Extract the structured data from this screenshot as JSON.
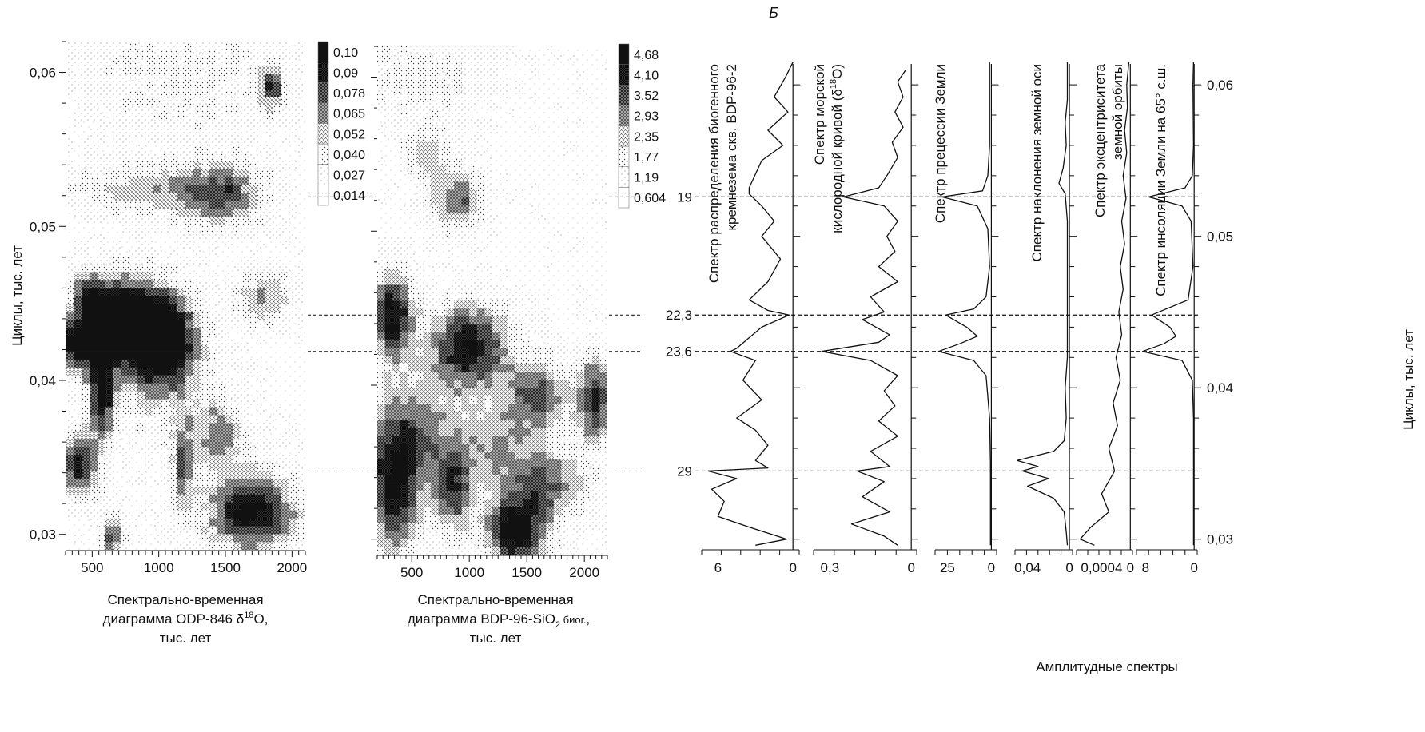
{
  "panel_letter": "Б",
  "left_axis_label": "Циклы, тыс. лет",
  "right_axis_label": "Циклы, тыс. лет",
  "bottom_label": "Амплитудные спектры",
  "colors": {
    "ink": "#111111",
    "dark": "#1a1a1a",
    "paper": "#ffffff"
  },
  "chart_data": [
    {
      "type": "heatmap",
      "id": "odp846",
      "title_lines": [
        "Спектрально-временная",
        "диаграмма ODP-846 δ18O,",
        "тыс. лет"
      ],
      "xlim": [
        300,
        2100
      ],
      "ylim": [
        0.029,
        0.062
      ],
      "x_ticks": [
        "500",
        "1000",
        "1500",
        "2000"
      ],
      "x_tick_values": [
        500,
        1000,
        1500,
        2000
      ],
      "y_ticks": [
        "0,06",
        "0,05",
        "0,04",
        "0,03"
      ],
      "y_tick_values": [
        0.06,
        0.05,
        0.04,
        0.03
      ],
      "colorbar": [
        "0,10",
        "0,09",
        "0,078",
        "0,065",
        "0,052",
        "0,040",
        "0,027",
        "0,014"
      ],
      "hotspots": [
        {
          "x": 760,
          "y": 0.044,
          "sx": 180,
          "sy": 0.002,
          "v": 0.95
        },
        {
          "x": 400,
          "y": 0.0424,
          "sx": 120,
          "sy": 0.0012,
          "v": 0.9
        },
        {
          "x": 1050,
          "y": 0.043,
          "sx": 170,
          "sy": 0.002,
          "v": 0.8
        },
        {
          "x": 570,
          "y": 0.039,
          "sx": 70,
          "sy": 0.002,
          "v": 0.75
        },
        {
          "x": 470,
          "y": 0.0455,
          "sx": 100,
          "sy": 0.0012,
          "v": 0.6
        },
        {
          "x": 400,
          "y": 0.0345,
          "sx": 110,
          "sy": 0.0015,
          "v": 0.7
        },
        {
          "x": 1480,
          "y": 0.052,
          "sx": 220,
          "sy": 0.0015,
          "v": 0.55
        },
        {
          "x": 1700,
          "y": 0.0315,
          "sx": 250,
          "sy": 0.0018,
          "v": 0.85
        },
        {
          "x": 1180,
          "y": 0.0345,
          "sx": 60,
          "sy": 0.002,
          "v": 0.55
        },
        {
          "x": 1450,
          "y": 0.0365,
          "sx": 140,
          "sy": 0.0015,
          "v": 0.5
        },
        {
          "x": 1850,
          "y": 0.059,
          "sx": 60,
          "sy": 0.001,
          "v": 0.55
        },
        {
          "x": 900,
          "y": 0.0525,
          "sx": 400,
          "sy": 0.0012,
          "v": 0.35
        },
        {
          "x": 1800,
          "y": 0.0455,
          "sx": 150,
          "sy": 0.0012,
          "v": 0.45
        },
        {
          "x": 650,
          "y": 0.03,
          "sx": 60,
          "sy": 0.001,
          "v": 0.6
        },
        {
          "x": 1000,
          "y": 0.0405,
          "sx": 300,
          "sy": 0.0025,
          "v": 0.35
        },
        {
          "x": 1200,
          "y": 0.06,
          "sx": 600,
          "sy": 0.003,
          "v": 0.22
        }
      ]
    },
    {
      "type": "heatmap",
      "id": "bdp96",
      "title_lines": [
        "Спектрально-временная",
        "диаграмма BDP-96-SiO2 биог.,",
        "тыс. лет"
      ],
      "xlim": [
        200,
        2200
      ],
      "ylim": [
        0.029,
        0.062
      ],
      "x_ticks": [
        "500",
        "1000",
        "1500",
        "2000"
      ],
      "x_tick_values": [
        500,
        1000,
        1500,
        2000
      ],
      "colorbar": [
        "4,68",
        "4,10",
        "3,52",
        "2,93",
        "2,35",
        "1,77",
        "1,19",
        "0,604"
      ],
      "hotspots": [
        {
          "x": 330,
          "y": 0.0445,
          "sx": 130,
          "sy": 0.002,
          "v": 0.85
        },
        {
          "x": 1000,
          "y": 0.0425,
          "sx": 250,
          "sy": 0.002,
          "v": 0.8
        },
        {
          "x": 1400,
          "y": 0.0305,
          "sx": 180,
          "sy": 0.0015,
          "v": 0.95
        },
        {
          "x": 350,
          "y": 0.033,
          "sx": 150,
          "sy": 0.003,
          "v": 0.75
        },
        {
          "x": 850,
          "y": 0.033,
          "sx": 120,
          "sy": 0.002,
          "v": 0.6
        },
        {
          "x": 1600,
          "y": 0.0395,
          "sx": 200,
          "sy": 0.0015,
          "v": 0.55
        },
        {
          "x": 2100,
          "y": 0.039,
          "sx": 110,
          "sy": 0.002,
          "v": 0.7
        },
        {
          "x": 900,
          "y": 0.052,
          "sx": 160,
          "sy": 0.0015,
          "v": 0.55
        },
        {
          "x": 620,
          "y": 0.055,
          "sx": 120,
          "sy": 0.0012,
          "v": 0.4
        },
        {
          "x": 500,
          "y": 0.037,
          "sx": 250,
          "sy": 0.0025,
          "v": 0.45
        },
        {
          "x": 1250,
          "y": 0.036,
          "sx": 300,
          "sy": 0.002,
          "v": 0.4
        },
        {
          "x": 1700,
          "y": 0.0335,
          "sx": 250,
          "sy": 0.0015,
          "v": 0.5
        },
        {
          "x": 600,
          "y": 0.06,
          "sx": 400,
          "sy": 0.002,
          "v": 0.25
        }
      ]
    },
    {
      "type": "line",
      "id": "amplitude-spectra",
      "title": "Амплитудные спектры",
      "ylim": [
        0.0293,
        0.0618
      ],
      "y_ticks": [
        "0,06",
        "0,05",
        "0,04",
        "0,03"
      ],
      "y_tick_values": [
        0.06,
        0.05,
        0.04,
        0.03
      ],
      "reference_lines": [
        {
          "label": "19",
          "y": 0.0526
        },
        {
          "label": "22,3",
          "y": 0.0448
        },
        {
          "label": "23,6",
          "y": 0.0424
        },
        {
          "label": "29",
          "y": 0.0345
        }
      ],
      "series": [
        {
          "label_lines": [
            "Спектр распределения биогенного",
            "кремнезема скв. BDP-96-2"
          ],
          "x_ticks": [
            "6",
            "0"
          ],
          "x_tick_values": [
            6,
            0
          ],
          "xlim": [
            7.3,
            -0.5
          ],
          "points": [
            [
              0.0,
              0.0615
            ],
            [
              0.6,
              0.0605
            ],
            [
              1.5,
              0.0592
            ],
            [
              0.4,
              0.0582
            ],
            [
              2.0,
              0.057
            ],
            [
              0.8,
              0.056
            ],
            [
              2.5,
              0.055
            ],
            [
              3.5,
              0.0532
            ],
            [
              3.5,
              0.0528
            ],
            [
              2.5,
              0.052
            ],
            [
              1.5,
              0.051
            ],
            [
              2.5,
              0.05
            ],
            [
              1.0,
              0.0485
            ],
            [
              2.0,
              0.047
            ],
            [
              3.5,
              0.0458
            ],
            [
              2.0,
              0.0451
            ],
            [
              0.3,
              0.0448
            ],
            [
              2.5,
              0.044
            ],
            [
              3.5,
              0.0433
            ],
            [
              4.5,
              0.0426
            ],
            [
              5.0,
              0.0424
            ],
            [
              3.0,
              0.0418
            ],
            [
              4.0,
              0.0405
            ],
            [
              2.5,
              0.0392
            ],
            [
              4.5,
              0.038
            ],
            [
              3.0,
              0.0372
            ],
            [
              2.0,
              0.0362
            ],
            [
              3.0,
              0.0352
            ],
            [
              2.0,
              0.0347
            ],
            [
              6.8,
              0.0345
            ],
            [
              4.5,
              0.034
            ],
            [
              6.5,
              0.0333
            ],
            [
              5.5,
              0.0325
            ],
            [
              6.0,
              0.0315
            ],
            [
              3.5,
              0.0308
            ],
            [
              0.5,
              0.03
            ],
            [
              3.0,
              0.0296
            ]
          ]
        },
        {
          "label_lines": [
            "Спектр морской",
            "кислородной кривой (δ18O)"
          ],
          "x_ticks": [
            "0,3",
            "0"
          ],
          "x_tick_values": [
            0.3,
            0
          ],
          "xlim": [
            0.36,
            -0.02
          ],
          "points": [
            [
              0.02,
              0.061
            ],
            [
              0.05,
              0.0602
            ],
            [
              0.03,
              0.0592
            ],
            [
              0.06,
              0.0582
            ],
            [
              0.03,
              0.0572
            ],
            [
              0.07,
              0.0562
            ],
            [
              0.05,
              0.0552
            ],
            [
              0.09,
              0.054
            ],
            [
              0.12,
              0.0532
            ],
            [
              0.25,
              0.0526
            ],
            [
              0.1,
              0.052
            ],
            [
              0.05,
              0.051
            ],
            [
              0.09,
              0.05
            ],
            [
              0.06,
              0.049
            ],
            [
              0.12,
              0.048
            ],
            [
              0.05,
              0.047
            ],
            [
              0.15,
              0.046
            ],
            [
              0.1,
              0.045
            ],
            [
              0.18,
              0.0445
            ],
            [
              0.08,
              0.0435
            ],
            [
              0.12,
              0.043
            ],
            [
              0.33,
              0.0424
            ],
            [
              0.15,
              0.0418
            ],
            [
              0.05,
              0.0408
            ],
            [
              0.1,
              0.0398
            ],
            [
              0.06,
              0.0388
            ],
            [
              0.12,
              0.0378
            ],
            [
              0.05,
              0.0368
            ],
            [
              0.15,
              0.0358
            ],
            [
              0.08,
              0.0348
            ],
            [
              0.2,
              0.0345
            ],
            [
              0.1,
              0.0338
            ],
            [
              0.18,
              0.0328
            ],
            [
              0.08,
              0.0318
            ],
            [
              0.22,
              0.031
            ],
            [
              0.1,
              0.0302
            ],
            [
              0.05,
              0.0296
            ]
          ]
        },
        {
          "label_lines": [
            "Спектр прецессии Земли"
          ],
          "x_ticks": [
            "25",
            "0"
          ],
          "x_tick_values": [
            25,
            0
          ],
          "xlim": [
            32,
            -3
          ],
          "points": [
            [
              1,
              0.0615
            ],
            [
              1,
              0.056
            ],
            [
              2,
              0.054
            ],
            [
              5,
              0.053
            ],
            [
              28,
              0.0526
            ],
            [
              8,
              0.052
            ],
            [
              2,
              0.0505
            ],
            [
              1,
              0.048
            ],
            [
              3,
              0.046
            ],
            [
              10,
              0.0452
            ],
            [
              26,
              0.0448
            ],
            [
              14,
              0.044
            ],
            [
              8,
              0.0434
            ],
            [
              18,
              0.0429
            ],
            [
              30,
              0.0424
            ],
            [
              10,
              0.0418
            ],
            [
              3,
              0.0408
            ],
            [
              1,
              0.038
            ],
            [
              0.5,
              0.035
            ],
            [
              0.5,
              0.0296
            ]
          ]
        },
        {
          "label_lines": [
            "Спектр наклонения земной оси"
          ],
          "x_ticks": [
            "0,04",
            "0"
          ],
          "x_tick_values": [
            0.04,
            0
          ],
          "xlim": [
            0.052,
            -0.003
          ],
          "points": [
            [
              0.002,
              0.0615
            ],
            [
              0.002,
              0.059
            ],
            [
              0.004,
              0.0575
            ],
            [
              0.003,
              0.056
            ],
            [
              0.006,
              0.0545
            ],
            [
              0.01,
              0.0535
            ],
            [
              0.004,
              0.0528
            ],
            [
              0.002,
              0.051
            ],
            [
              0.002,
              0.048
            ],
            [
              0.002,
              0.042
            ],
            [
              0.004,
              0.04
            ],
            [
              0.003,
              0.038
            ],
            [
              0.005,
              0.0365
            ],
            [
              0.015,
              0.0358
            ],
            [
              0.05,
              0.0352
            ],
            [
              0.03,
              0.0348
            ],
            [
              0.045,
              0.0345
            ],
            [
              0.02,
              0.034
            ],
            [
              0.04,
              0.0335
            ],
            [
              0.015,
              0.0327
            ],
            [
              0.005,
              0.0318
            ],
            [
              0.003,
              0.0305
            ],
            [
              0.002,
              0.0296
            ]
          ]
        },
        {
          "label_lines": [
            "Спектр эксцентриситета",
            "земной орбиты"
          ],
          "x_ticks": [
            "0,0004",
            "0"
          ],
          "x_tick_values": [
            0.0004,
            0
          ],
          "xlim": [
            0.00075,
            -3e-05
          ],
          "points": [
            [
              2e-05,
              0.0615
            ],
            [
              5e-05,
              0.06
            ],
            [
              4e-05,
              0.0585
            ],
            [
              8e-05,
              0.057
            ],
            [
              5e-05,
              0.0555
            ],
            [
              0.0001,
              0.054
            ],
            [
              6e-05,
              0.0525
            ],
            [
              0.00012,
              0.051
            ],
            [
              8e-05,
              0.0495
            ],
            [
              0.00014,
              0.048
            ],
            [
              0.0001,
              0.0465
            ],
            [
              0.00016,
              0.045
            ],
            [
              0.00012,
              0.0435
            ],
            [
              0.0002,
              0.042
            ],
            [
              0.00014,
              0.0405
            ],
            [
              0.00024,
              0.039
            ],
            [
              0.00018,
              0.0375
            ],
            [
              0.0003,
              0.036
            ],
            [
              0.00022,
              0.0345
            ],
            [
              0.0004,
              0.033
            ],
            [
              0.0003,
              0.0318
            ],
            [
              0.00055,
              0.0308
            ],
            [
              0.0007,
              0.03
            ],
            [
              0.0005,
              0.0296
            ]
          ]
        },
        {
          "label_lines": [
            "Спектр инсоляции Земли на 65° с.ш."
          ],
          "x_ticks": [
            "8",
            "0"
          ],
          "x_tick_values": [
            8,
            0
          ],
          "xlim": [
            9.5,
            -0.5
          ],
          "points": [
            [
              0.1,
              0.0615
            ],
            [
              0.2,
              0.06
            ],
            [
              0.1,
              0.056
            ],
            [
              0.3,
              0.054
            ],
            [
              1.5,
              0.0532
            ],
            [
              7.5,
              0.0526
            ],
            [
              2.0,
              0.052
            ],
            [
              0.5,
              0.051
            ],
            [
              0.2,
              0.048
            ],
            [
              1.0,
              0.0458
            ],
            [
              7.0,
              0.0448
            ],
            [
              4.0,
              0.044
            ],
            [
              3.0,
              0.0434
            ],
            [
              5.0,
              0.0429
            ],
            [
              8.5,
              0.0424
            ],
            [
              2.0,
              0.0418
            ],
            [
              0.3,
              0.0405
            ],
            [
              0.1,
              0.038
            ],
            [
              0.1,
              0.0296
            ]
          ]
        }
      ]
    }
  ]
}
